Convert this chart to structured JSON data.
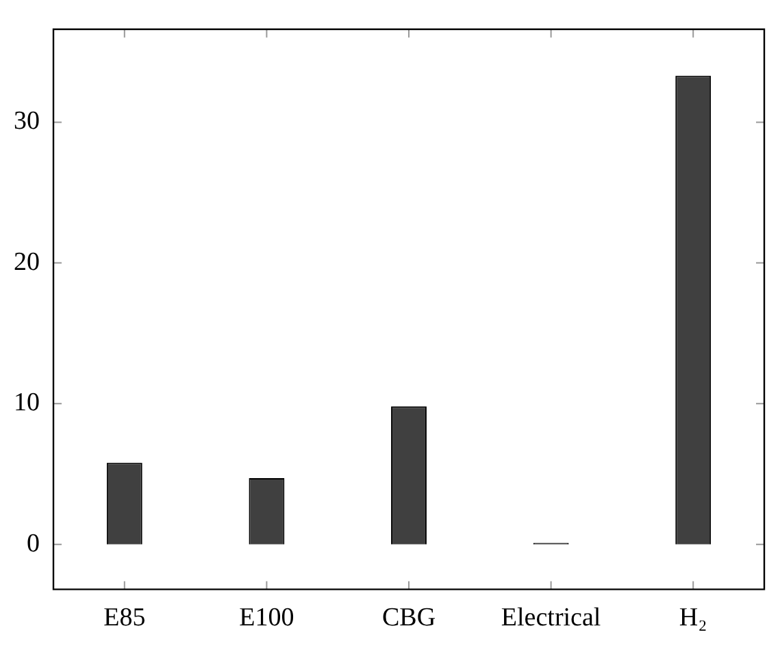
{
  "chart_data": {
    "type": "bar",
    "categories": [
      "E85",
      "E100",
      "CBG",
      "Electrical",
      "H₂"
    ],
    "values": [
      5.8,
      4.7,
      9.8,
      0.1,
      33.3
    ],
    "color": "#404040",
    "ylim": [
      -3.2,
      36.6
    ],
    "yticks": [
      0,
      10,
      20,
      30
    ],
    "grid": false,
    "legend": false
  }
}
